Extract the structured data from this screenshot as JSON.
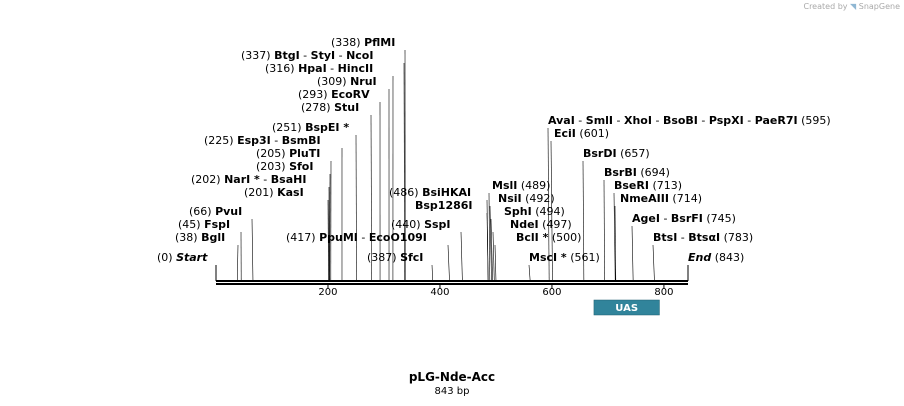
{
  "credit": {
    "prefix": "Created by",
    "brand": "SnapGene"
  },
  "map": {
    "name": "pLG-Nde-Acc",
    "length_label": "843 bp",
    "length_bp": 843,
    "backbone_color": "#000000",
    "ruler_ticks": [
      200,
      400,
      600,
      800
    ],
    "end_labels": {
      "start": "Start",
      "end": "End",
      "start_pos": "(0)",
      "end_pos": "(843)"
    }
  },
  "features": [
    {
      "name": "UAS",
      "start": 675,
      "end": 792,
      "color": "#31849b"
    }
  ],
  "sites": [
    {
      "names": [
        "BglI"
      ],
      "pos_label": "(38)",
      "bp": 38,
      "side": "left"
    },
    {
      "names": [
        "FspI"
      ],
      "pos_label": "(45)",
      "bp": 45,
      "side": "left"
    },
    {
      "names": [
        "PvuI"
      ],
      "pos_label": "(66)",
      "bp": 66,
      "side": "left"
    },
    {
      "names": [
        "KasI"
      ],
      "pos_label": "(201)",
      "bp": 201,
      "side": "left"
    },
    {
      "names": [
        "NarI *",
        "BsaHI"
      ],
      "pos_label": "(202)",
      "bp": 202,
      "side": "left"
    },
    {
      "names": [
        "SfoI"
      ],
      "pos_label": "(203)",
      "bp": 203,
      "side": "left"
    },
    {
      "names": [
        "PluTI"
      ],
      "pos_label": "(205)",
      "bp": 205,
      "side": "left"
    },
    {
      "names": [
        "Esp3I",
        "BsmBI"
      ],
      "pos_label": "(225)",
      "bp": 225,
      "side": "left"
    },
    {
      "names": [
        "BspEI *"
      ],
      "pos_label": "(251)",
      "bp": 251,
      "side": "left"
    },
    {
      "names": [
        "StuI"
      ],
      "pos_label": "(278)",
      "bp": 278,
      "side": "left"
    },
    {
      "names": [
        "EcoRV"
      ],
      "pos_label": "(293)",
      "bp": 293,
      "side": "left"
    },
    {
      "names": [
        "NruI"
      ],
      "pos_label": "(309)",
      "bp": 309,
      "side": "left"
    },
    {
      "names": [
        "HpaI",
        "HincII"
      ],
      "pos_label": "(316)",
      "bp": 316,
      "side": "left"
    },
    {
      "names": [
        "BtgI",
        "StyI",
        "NcoI"
      ],
      "pos_label": "(337)",
      "bp": 337,
      "side": "left"
    },
    {
      "names": [
        "PflMI"
      ],
      "pos_label": "(338)",
      "bp": 338,
      "side": "left"
    },
    {
      "names": [
        "PpuMI",
        "EcoO109I"
      ],
      "pos_label": "(417)",
      "bp": 417,
      "side": "left"
    },
    {
      "names": [
        "SfcI"
      ],
      "pos_label": "(387)",
      "bp": 387,
      "side": "left"
    },
    {
      "names": [
        "SspI"
      ],
      "pos_label": "(440)",
      "bp": 440,
      "side": "left"
    },
    {
      "names": [
        "Bsp1286I"
      ],
      "pos_label": "",
      "bp": 486,
      "side": "left"
    },
    {
      "names": [
        "BsiHKAI"
      ],
      "pos_label": "(486)",
      "bp": 486,
      "side": "left"
    },
    {
      "names": [
        "MslI"
      ],
      "pos_label": "(489)",
      "bp": 489,
      "side": "right"
    },
    {
      "names": [
        "NsiI"
      ],
      "pos_label": "(492)",
      "bp": 492,
      "side": "right"
    },
    {
      "names": [
        "SphI"
      ],
      "pos_label": "(494)",
      "bp": 494,
      "side": "right"
    },
    {
      "names": [
        "NdeI"
      ],
      "pos_label": "(497)",
      "bp": 497,
      "side": "right"
    },
    {
      "names": [
        "BclI *"
      ],
      "pos_label": "(500)",
      "bp": 500,
      "side": "right"
    },
    {
      "names": [
        "MscI *"
      ],
      "pos_label": "(561)",
      "bp": 561,
      "side": "right"
    },
    {
      "names": [
        "AvaI",
        "SmlI",
        "XhoI",
        "BsoBI",
        "PspXI",
        "PaeR7I"
      ],
      "pos_label": "(595)",
      "bp": 595,
      "side": "right"
    },
    {
      "names": [
        "EciI"
      ],
      "pos_label": "(601)",
      "bp": 601,
      "side": "right"
    },
    {
      "names": [
        "BsrDI"
      ],
      "pos_label": "(657)",
      "bp": 657,
      "side": "right"
    },
    {
      "names": [
        "BsrBI"
      ],
      "pos_label": "(694)",
      "bp": 694,
      "side": "right"
    },
    {
      "names": [
        "BseRI"
      ],
      "pos_label": "(713)",
      "bp": 713,
      "side": "right"
    },
    {
      "names": [
        "NmeAIII"
      ],
      "pos_label": "(714)",
      "bp": 714,
      "side": "right"
    },
    {
      "names": [
        "AgeI",
        "BsrFI"
      ],
      "pos_label": "(745)",
      "bp": 745,
      "side": "right"
    },
    {
      "names": [
        "BtsI",
        "BtsαI"
      ],
      "pos_label": "(783)",
      "bp": 783,
      "side": "right"
    }
  ]
}
